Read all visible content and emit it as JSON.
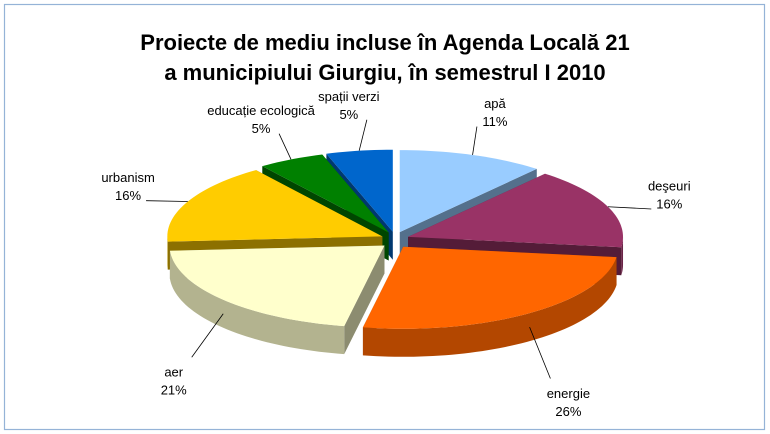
{
  "chart_data": {
    "type": "pie3d",
    "title": [
      "Proiecte de mediu incluse în Agenda Locală 21",
      "a municipiului Giurgiu, în semestrul I 2010"
    ],
    "categories": [
      "apă",
      "deşeuri",
      "energie",
      "aer",
      "urbanism",
      "educație ecologică",
      "spații verzi"
    ],
    "values": [
      11,
      16,
      26,
      21,
      16,
      5,
      5
    ],
    "value_labels": [
      "11%",
      "16%",
      "26%",
      "21%",
      "16%",
      "5%",
      "5%"
    ],
    "colors": [
      "#99ccff",
      "#993366",
      "#ff6600",
      "#ffffcc",
      "#ffcc00",
      "#008000",
      "#0066cc"
    ]
  }
}
